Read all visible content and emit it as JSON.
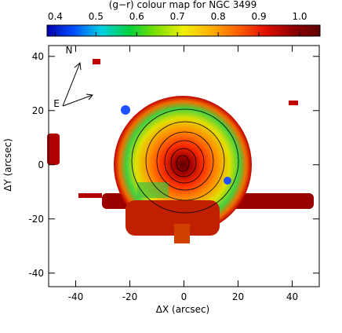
{
  "chart_data": {
    "type": "image",
    "title": "(g−r) colour map for NGC 3499",
    "colorbar": {
      "lim": [
        0.38,
        1.05
      ],
      "ticks": [
        0.4,
        0.5,
        0.6,
        0.7,
        0.8,
        0.9,
        {
          "value": 1.0,
          "label": "1.0"
        }
      ],
      "colors": [
        "#0000b0",
        "#0050ff",
        "#00d0e0",
        "#00d040",
        "#80e000",
        "#f0f000",
        "#ffb000",
        "#ff6000",
        "#e01000",
        "#900000",
        "#600000"
      ]
    },
    "xlabel": "ΔX (arcsec)",
    "ylabel": "ΔY (arcsec)",
    "xlim": [
      -50,
      50
    ],
    "ylim": [
      -45,
      44
    ],
    "xticks": [
      -40,
      -20,
      0,
      20,
      40
    ],
    "yticks": [
      -40,
      -20,
      0,
      20,
      40
    ],
    "annotations": {
      "north": "N",
      "east": "E"
    }
  }
}
